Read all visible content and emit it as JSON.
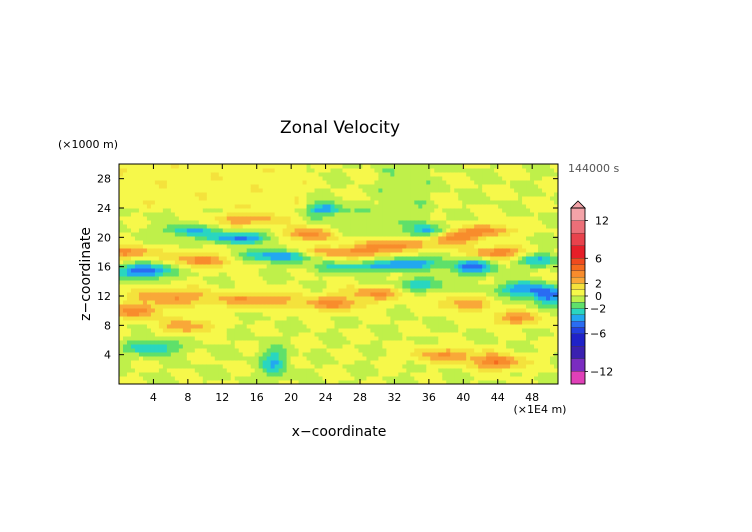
{
  "chart_data": {
    "type": "heatmap",
    "title": "Zonal Velocity",
    "xlabel": "x−coordinate",
    "ylabel": "z−coordinate",
    "x_unit": "(×1E4 m)",
    "y_unit": "(×1000 m)",
    "time_label": "144000 s",
    "xlim": [
      0,
      51
    ],
    "ylim": [
      0,
      30
    ],
    "x_ticks": [
      4,
      8,
      12,
      16,
      20,
      24,
      28,
      32,
      36,
      40,
      44,
      48
    ],
    "y_ticks": [
      4,
      8,
      12,
      16,
      20,
      24,
      28
    ],
    "colorbar": {
      "min": -14,
      "max": 14,
      "tick_labels": [
        "12",
        "6",
        "2",
        "0",
        "−2",
        "−6",
        "−12"
      ],
      "tick_values": [
        12,
        6,
        2,
        0,
        -2,
        -6,
        -12
      ],
      "levels": [
        {
          "from": 12,
          "to": 14,
          "color": "#f4a3a8"
        },
        {
          "from": 10,
          "to": 12,
          "color": "#ec6f78"
        },
        {
          "from": 8,
          "to": 10,
          "color": "#e8424c"
        },
        {
          "from": 6,
          "to": 8,
          "color": "#e61e28"
        },
        {
          "from": 5,
          "to": 6,
          "color": "#f04a1e"
        },
        {
          "from": 4,
          "to": 5,
          "color": "#f56a1e"
        },
        {
          "from": 3,
          "to": 4,
          "color": "#f88c2c"
        },
        {
          "from": 2,
          "to": 3,
          "color": "#f9a838"
        },
        {
          "from": 1,
          "to": 2,
          "color": "#f4e23c"
        },
        {
          "from": 0,
          "to": 1,
          "color": "#f6f84a"
        },
        {
          "from": -1,
          "to": 0,
          "color": "#bff04a"
        },
        {
          "from": -2,
          "to": -1,
          "color": "#5fe06a"
        },
        {
          "from": -3,
          "to": -2,
          "color": "#29d6c0"
        },
        {
          "from": -4,
          "to": -3,
          "color": "#22a8f0"
        },
        {
          "from": -5,
          "to": -4,
          "color": "#2a6cf2"
        },
        {
          "from": -6,
          "to": -5,
          "color": "#2240e0"
        },
        {
          "from": -8,
          "to": -6,
          "color": "#1f22c8"
        },
        {
          "from": -10,
          "to": -8,
          "color": "#3a20b0"
        },
        {
          "from": -12,
          "to": -10,
          "color": "#7a2cc0"
        },
        {
          "from": -14,
          "to": -12,
          "color": "#e040b8"
        }
      ]
    },
    "features": [
      {
        "x": 3,
        "z": 15.5,
        "sx": 3,
        "sz": 1,
        "amp": -5
      },
      {
        "x": 1,
        "z": 18,
        "sx": 3,
        "sz": 0.9,
        "amp": 3.5
      },
      {
        "x": 8,
        "z": 21,
        "sx": 3,
        "sz": 0.8,
        "amp": -3
      },
      {
        "x": 10,
        "z": 17,
        "sx": 4,
        "sz": 1,
        "amp": 3.5
      },
      {
        "x": 14,
        "z": 20,
        "sx": 4,
        "sz": 0.8,
        "amp": -4
      },
      {
        "x": 15,
        "z": 22.5,
        "sx": 4,
        "sz": 0.9,
        "amp": 3
      },
      {
        "x": 18,
        "z": 17.5,
        "sx": 5,
        "sz": 0.8,
        "amp": -4
      },
      {
        "x": 22,
        "z": 20.5,
        "sx": 3,
        "sz": 0.9,
        "amp": 4
      },
      {
        "x": 24,
        "z": 24,
        "sx": 2,
        "sz": 0.8,
        "amp": -3.5
      },
      {
        "x": 26,
        "z": 18,
        "sx": 5,
        "sz": 0.8,
        "amp": 3.5
      },
      {
        "x": 28,
        "z": 16,
        "sx": 5,
        "sz": 0.7,
        "amp": -3
      },
      {
        "x": 32,
        "z": 19,
        "sx": 4,
        "sz": 0.8,
        "amp": 3.5
      },
      {
        "x": 34,
        "z": 16.5,
        "sx": 3,
        "sz": 0.8,
        "amp": -4
      },
      {
        "x": 36,
        "z": 21,
        "sx": 2,
        "sz": 0.9,
        "amp": -3
      },
      {
        "x": 39,
        "z": 20,
        "sx": 2.5,
        "sz": 1,
        "amp": 4
      },
      {
        "x": 41,
        "z": 16,
        "sx": 2.5,
        "sz": 1,
        "amp": -4.5
      },
      {
        "x": 43,
        "z": 21,
        "sx": 3,
        "sz": 0.8,
        "amp": 3.5
      },
      {
        "x": 44,
        "z": 18,
        "sx": 3,
        "sz": 0.8,
        "amp": 4
      },
      {
        "x": 47,
        "z": 13,
        "sx": 3,
        "sz": 1,
        "amp": -4
      },
      {
        "x": 49,
        "z": 17,
        "sx": 2.5,
        "sz": 0.9,
        "amp": -3
      },
      {
        "x": 6,
        "z": 12,
        "sx": 5,
        "sz": 1.2,
        "amp": 3
      },
      {
        "x": 2,
        "z": 10,
        "sx": 3,
        "sz": 1,
        "amp": 3.5
      },
      {
        "x": 16,
        "z": 11.5,
        "sx": 5,
        "sz": 1,
        "amp": 3
      },
      {
        "x": 25,
        "z": 11,
        "sx": 4,
        "sz": 1,
        "amp": 3
      },
      {
        "x": 30,
        "z": 12.5,
        "sx": 4,
        "sz": 0.9,
        "amp": 3
      },
      {
        "x": 35,
        "z": 13.5,
        "sx": 3,
        "sz": 0.9,
        "amp": -3
      },
      {
        "x": 40,
        "z": 11,
        "sx": 3,
        "sz": 1,
        "amp": 3
      },
      {
        "x": 46,
        "z": 9,
        "sx": 3,
        "sz": 1,
        "amp": 3
      },
      {
        "x": 4,
        "z": 5,
        "sx": 3,
        "sz": 1,
        "amp": -3
      },
      {
        "x": 8,
        "z": 8,
        "sx": 3,
        "sz": 1,
        "amp": 3
      },
      {
        "x": 38,
        "z": 4,
        "sx": 4,
        "sz": 1,
        "amp": 3
      },
      {
        "x": 44,
        "z": 3,
        "sx": 3,
        "sz": 1,
        "amp": 4
      },
      {
        "x": 50,
        "z": 12,
        "sx": 2,
        "sz": 1.2,
        "amp": -4
      },
      {
        "x": 18,
        "z": 3,
        "sx": 1.5,
        "sz": 2,
        "amp": -3
      }
    ]
  }
}
